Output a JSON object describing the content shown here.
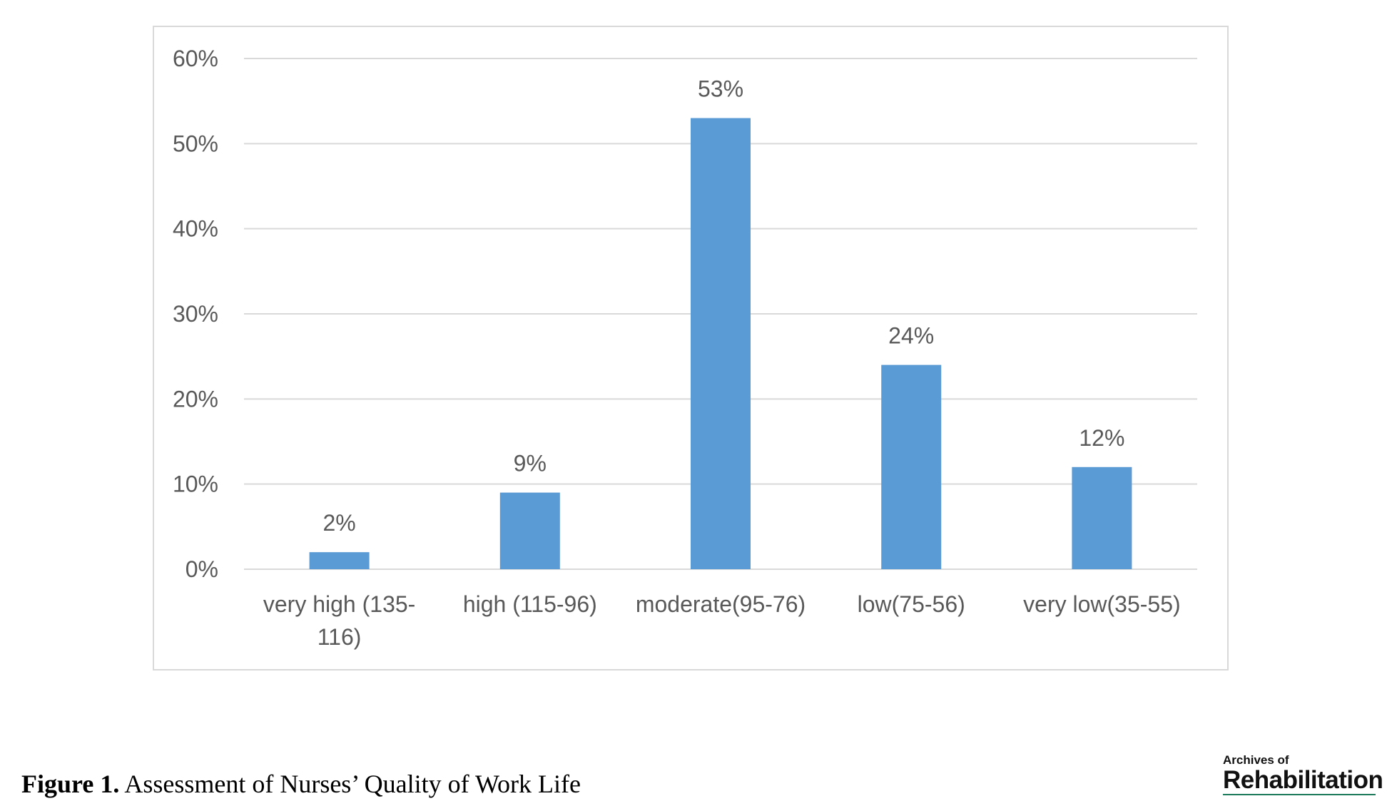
{
  "chart_data": {
    "type": "bar",
    "categories": [
      "very high (135-116)",
      "high (115-96)",
      "moderate(95-76)",
      "low(75-56)",
      "very low(35-55)"
    ],
    "category_lines": [
      [
        "very high (135-",
        "116)"
      ],
      [
        "high (115-96)"
      ],
      [
        "moderate(95-76)"
      ],
      [
        "low(75-56)"
      ],
      [
        "very low(35-55)"
      ]
    ],
    "values": [
      2,
      9,
      53,
      24,
      12
    ],
    "data_labels": [
      "2%",
      "9%",
      "53%",
      "24%",
      "12%"
    ],
    "yticks": [
      0,
      10,
      20,
      30,
      40,
      50,
      60
    ],
    "ytick_labels": [
      "0%",
      "10%",
      "20%",
      "30%",
      "40%",
      "50%",
      "60%"
    ],
    "ylim": [
      0,
      60
    ],
    "grid": true,
    "legend": "none",
    "bar_color": "#5b9bd5",
    "grid_color": "#d9d9d9",
    "text_color": "#595959",
    "title": "",
    "xlabel": "",
    "ylabel": ""
  },
  "caption": {
    "label": "Figure 1.",
    "text": " Assessment of Nurses’ Quality of Work Life"
  },
  "logo": {
    "line1": "Archives of",
    "line2": "Rehabilitation"
  }
}
